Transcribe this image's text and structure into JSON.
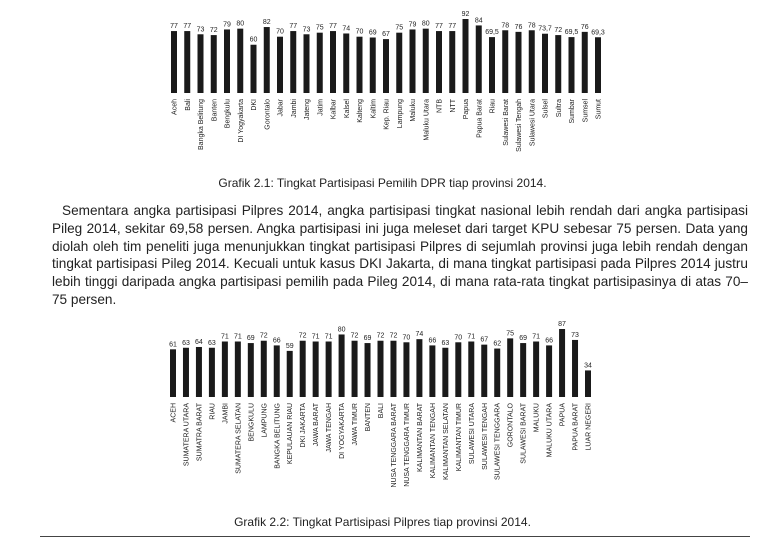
{
  "chart_data": [
    {
      "type": "bar",
      "color": "#1a1a1a",
      "caption": "Grafik 2.1: Tingkat Partisipasi Pemilih DPR tiap provinsi 2014.",
      "categories": [
        "Aceh",
        "Bali",
        "Bangka Belitung",
        "Banten",
        "Bengkulu",
        "DI Yogyakarta",
        "DKI",
        "Gorontalo",
        "Jabar",
        "Jambi",
        "Jateng",
        "Jatim",
        "Kalbar",
        "Kalsel",
        "Kalteng",
        "Kaltim",
        "Kep. Riau",
        "Lampung",
        "Maluku",
        "Maluku Utara",
        "NTB",
        "NTT",
        "Papua",
        "Papua Barat",
        "Riau",
        "Sulawesi Barat",
        "Sulawesi Tengah",
        "Sulawesi Utara",
        "Sulsel",
        "Sultra",
        "Sumbar",
        "Sumsel",
        "Sumut"
      ],
      "values": [
        77,
        77,
        73,
        72,
        79,
        80,
        60,
        82,
        70,
        77,
        73,
        75,
        77,
        74,
        70,
        69,
        67,
        75,
        79,
        80,
        77,
        77,
        92,
        84,
        69.5,
        78,
        76,
        78,
        73.7,
        72,
        69.5,
        76,
        69.3
      ],
      "value_labels": [
        "77",
        "77",
        "73",
        "72",
        "79",
        "80",
        "60",
        "82",
        "70",
        "77",
        "73",
        "75",
        "77",
        "74",
        "70",
        "69",
        "67",
        "75",
        "79",
        "80",
        "77",
        "77",
        "92",
        "84",
        "69,5",
        "78",
        "76",
        "78",
        "73,7",
        "72",
        "69,5",
        "76",
        "69,3"
      ]
    },
    {
      "type": "bar",
      "color": "#1a1a1a",
      "caption": "Grafik 2.2: Tingkat Partisipasi Pilpres tiap provinsi 2014.",
      "categories": [
        "ACEH",
        "SUMATERA UTARA",
        "SUMATRA BARAT",
        "RIAU",
        "JAMBI",
        "SUMATERA SELATAN",
        "BENGKULU",
        "LAMPUNG",
        "BANGKA BELITUNG",
        "KEPULAUAN RIAU",
        "DKI JAKARTA",
        "JAWA BARAT",
        "JAWA TENGAH",
        "DI YOGYAKARTA",
        "JAWA TIMUR",
        "BANTEN",
        "BALI",
        "NUSA TENGGARA BARAT",
        "NUSA TENGGARA TIMUR",
        "KALIMANTAN BARAT",
        "KALIMANTAN TENGAH",
        "KALIMANTAN SELATAN",
        "KALIMANTAN TIMUR",
        "SULAWESI UTARA",
        "SULAWESI TENGAH",
        "SULAWESI TENGGARA",
        "GORONTALO",
        "SULAWESI BARAT",
        "MALUKU",
        "MALUKU UTARA",
        "PAPUA",
        "PAPUA BARAT",
        "LUAR NEGERI"
      ],
      "values": [
        61,
        63,
        64,
        63,
        71,
        71,
        69,
        72,
        66,
        59,
        72,
        71,
        71,
        80,
        72,
        69,
        72,
        72,
        70,
        74,
        66,
        63,
        70,
        71,
        67,
        62,
        75,
        69,
        71,
        66,
        87,
        73,
        34
      ]
    }
  ],
  "paragraph": "Sementara angka partisipasi Pilpres 2014, angka partisipasi tingkat nasional lebih rendah dari angka partisipasi Pileg 2014, sekitar 69,58 persen. Angka partisipasi ini juga meleset dari target KPU sebesar 75 persen. Data yang diolah oleh tim peneliti juga menunjukkan tingkat partisipasi Pilpres di sejumlah provinsi juga lebih rendah dengan tingkat partisipasi Pileg 2014. Kecuali untuk kasus DKI Jakarta, di mana tingkat partisipasi pada Pilpres 2014 justru lebih tinggi daripada angka partisipasi pemilih pada Pileg 2014, di mana rata-rata tingkat partisipasinya di atas 70–75 persen."
}
